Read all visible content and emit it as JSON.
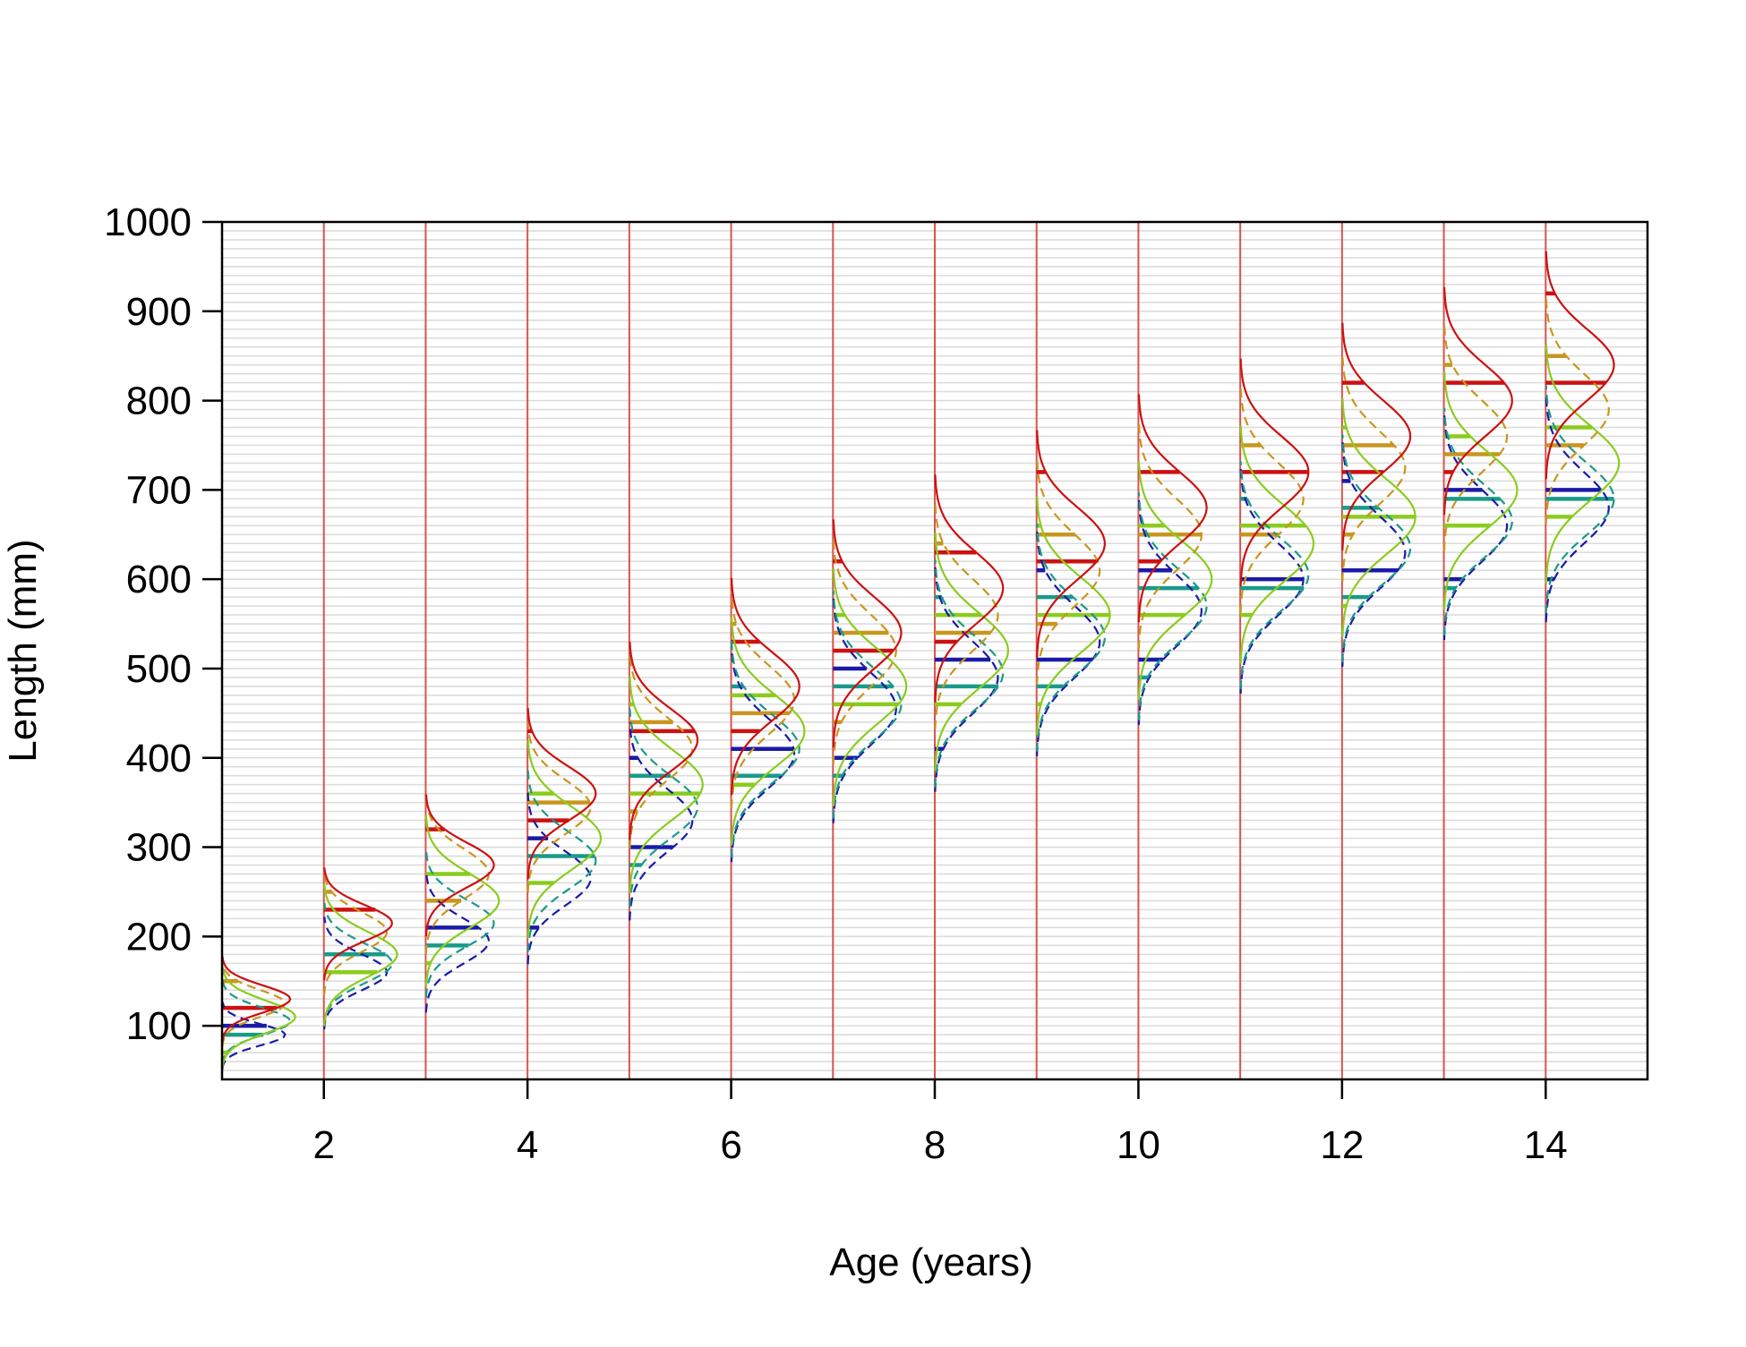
{
  "chart_data": {
    "type": "line",
    "title": "",
    "xlabel": "Age (years)",
    "ylabel": "Length (mm)",
    "xlim": [
      1,
      15
    ],
    "ylim": [
      40,
      1000
    ],
    "x_ticks": [
      2,
      4,
      6,
      8,
      10,
      12,
      14
    ],
    "y_ticks": [
      100,
      200,
      300,
      400,
      500,
      600,
      700,
      800,
      900,
      1000
    ],
    "length_bin_mm": 10,
    "gridlines": "horizontal, every length bin",
    "age_reference_lines": [
      1,
      2,
      3,
      4,
      5,
      6,
      7,
      8,
      9,
      10,
      11,
      12,
      13,
      14
    ],
    "colors": {
      "reference_line": "#d9534f",
      "grid": "#dcdcdc",
      "series": [
        "#1a1aa8",
        "#1a9a8a",
        "#8acc1e",
        "#c8961e",
        "#cc1111"
      ]
    },
    "legend": "none",
    "series": [
      {
        "color": "#1a1aa8",
        "style": "dashed",
        "values": [
          {
            "age": 1,
            "mean": 90,
            "sd": 12
          },
          {
            "age": 2,
            "mean": 160,
            "sd": 20
          },
          {
            "age": 3,
            "mean": 195,
            "sd": 25
          },
          {
            "age": 4,
            "mean": 265,
            "sd": 30
          },
          {
            "age": 5,
            "mean": 330,
            "sd": 35
          },
          {
            "age": 6,
            "mean": 405,
            "sd": 38
          },
          {
            "age": 7,
            "mean": 455,
            "sd": 40
          },
          {
            "age": 8,
            "mean": 490,
            "sd": 40
          },
          {
            "age": 9,
            "mean": 530,
            "sd": 40
          },
          {
            "age": 10,
            "mean": 565,
            "sd": 40
          },
          {
            "age": 11,
            "mean": 600,
            "sd": 40
          },
          {
            "age": 12,
            "mean": 630,
            "sd": 40
          },
          {
            "age": 13,
            "mean": 660,
            "sd": 40
          },
          {
            "age": 14,
            "mean": 680,
            "sd": 40
          }
        ]
      },
      {
        "color": "#1a9a8a",
        "style": "dashed",
        "values": [
          {
            "age": 1,
            "mean": 105,
            "sd": 15
          },
          {
            "age": 2,
            "mean": 170,
            "sd": 22
          },
          {
            "age": 3,
            "mean": 215,
            "sd": 26
          },
          {
            "age": 4,
            "mean": 285,
            "sd": 32
          },
          {
            "age": 5,
            "mean": 345,
            "sd": 35
          },
          {
            "age": 6,
            "mean": 410,
            "sd": 38
          },
          {
            "age": 7,
            "mean": 460,
            "sd": 40
          },
          {
            "age": 8,
            "mean": 495,
            "sd": 40
          },
          {
            "age": 9,
            "mean": 535,
            "sd": 40
          },
          {
            "age": 10,
            "mean": 570,
            "sd": 40
          },
          {
            "age": 11,
            "mean": 605,
            "sd": 40
          },
          {
            "age": 12,
            "mean": 635,
            "sd": 40
          },
          {
            "age": 13,
            "mean": 665,
            "sd": 40
          },
          {
            "age": 14,
            "mean": 690,
            "sd": 40
          }
        ]
      },
      {
        "color": "#8acc1e",
        "style": "solid",
        "values": [
          {
            "age": 1,
            "mean": 110,
            "sd": 18
          },
          {
            "age": 2,
            "mean": 180,
            "sd": 25
          },
          {
            "age": 3,
            "mean": 240,
            "sd": 30
          },
          {
            "age": 4,
            "mean": 310,
            "sd": 35
          },
          {
            "age": 5,
            "mean": 370,
            "sd": 38
          },
          {
            "age": 6,
            "mean": 430,
            "sd": 40
          },
          {
            "age": 7,
            "mean": 480,
            "sd": 42
          },
          {
            "age": 8,
            "mean": 520,
            "sd": 42
          },
          {
            "age": 9,
            "mean": 560,
            "sd": 42
          },
          {
            "age": 10,
            "mean": 600,
            "sd": 42
          },
          {
            "age": 11,
            "mean": 640,
            "sd": 42
          },
          {
            "age": 12,
            "mean": 670,
            "sd": 42
          },
          {
            "age": 13,
            "mean": 700,
            "sd": 42
          },
          {
            "age": 14,
            "mean": 730,
            "sd": 42
          }
        ]
      },
      {
        "color": "#c8961e",
        "style": "dashed",
        "values": [
          {
            "age": 1,
            "mean": 125,
            "sd": 15
          },
          {
            "age": 2,
            "mean": 205,
            "sd": 22
          },
          {
            "age": 3,
            "mean": 270,
            "sd": 28
          },
          {
            "age": 4,
            "mean": 345,
            "sd": 30
          },
          {
            "age": 5,
            "mean": 410,
            "sd": 35
          },
          {
            "age": 6,
            "mean": 465,
            "sd": 38
          },
          {
            "age": 7,
            "mean": 520,
            "sd": 40
          },
          {
            "age": 8,
            "mean": 560,
            "sd": 40
          },
          {
            "age": 9,
            "mean": 610,
            "sd": 40
          },
          {
            "age": 10,
            "mean": 650,
            "sd": 40
          },
          {
            "age": 11,
            "mean": 690,
            "sd": 40
          },
          {
            "age": 12,
            "mean": 725,
            "sd": 40
          },
          {
            "age": 13,
            "mean": 760,
            "sd": 40
          },
          {
            "age": 14,
            "mean": 790,
            "sd": 40
          }
        ]
      },
      {
        "color": "#cc1111",
        "style": "solid",
        "values": [
          {
            "age": 1,
            "mean": 130,
            "sd": 15
          },
          {
            "age": 2,
            "mean": 215,
            "sd": 20
          },
          {
            "age": 3,
            "mean": 280,
            "sd": 25
          },
          {
            "age": 4,
            "mean": 360,
            "sd": 30
          },
          {
            "age": 5,
            "mean": 420,
            "sd": 35
          },
          {
            "age": 6,
            "mean": 480,
            "sd": 38
          },
          {
            "age": 7,
            "mean": 540,
            "sd": 40
          },
          {
            "age": 8,
            "mean": 590,
            "sd": 40
          },
          {
            "age": 9,
            "mean": 640,
            "sd": 40
          },
          {
            "age": 10,
            "mean": 680,
            "sd": 40
          },
          {
            "age": 11,
            "mean": 720,
            "sd": 40
          },
          {
            "age": 12,
            "mean": 760,
            "sd": 40
          },
          {
            "age": 13,
            "mean": 800,
            "sd": 40
          },
          {
            "age": 14,
            "mean": 840,
            "sd": 40
          }
        ]
      }
    ]
  }
}
